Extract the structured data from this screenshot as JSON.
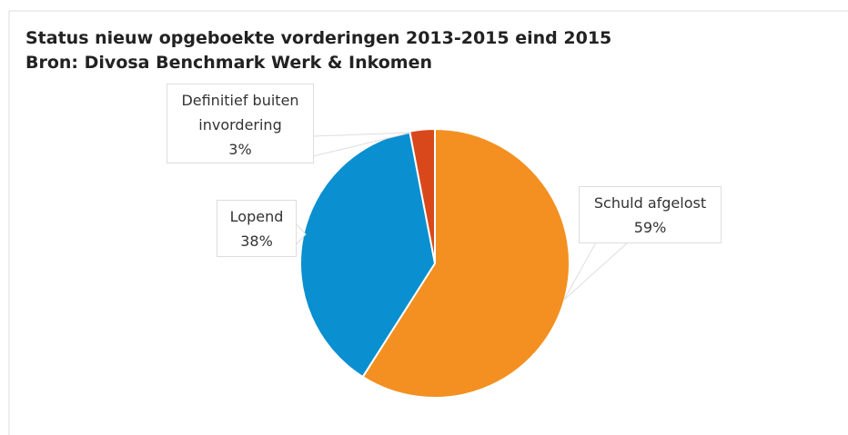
{
  "chart_data": {
    "type": "pie",
    "title": "Status nieuw opgeboekte vorderingen 2013-2015 eind 2015",
    "subtitle": "Bron: Divosa Benchmark Werk & Inkomen",
    "categories": [
      "Schuld afgelost",
      "Lopend",
      "Definitief buiten invordering"
    ],
    "values": [
      59,
      38,
      3
    ],
    "value_labels": [
      "59%",
      "38%",
      "3%"
    ],
    "colors": [
      "#f39021",
      "#0a8fd0",
      "#d9481b"
    ]
  }
}
